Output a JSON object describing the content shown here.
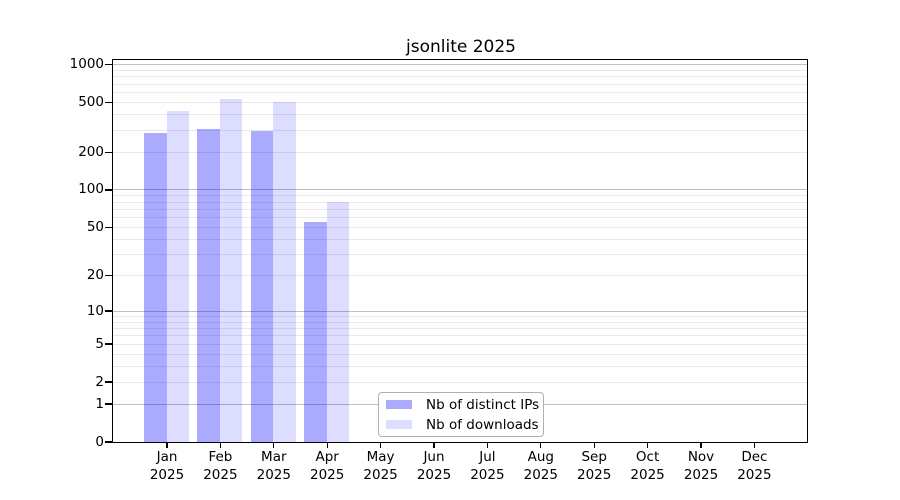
{
  "title": "jsonlite 2025",
  "legend": {
    "position": "lower center",
    "items": [
      {
        "label": "Nb of distinct IPs",
        "color": "#aaaaff"
      },
      {
        "label": "Nb of downloads",
        "color": "#ddddff"
      }
    ]
  },
  "colors": {
    "bar_distinct_ips": "rgba(0,0,255,0.335)",
    "bar_downloads": "rgba(0,0,255,0.135)",
    "major_gridline": "#bfbfbf",
    "minor_gridline": "#e9e9e9",
    "axis": "#000000"
  },
  "chart_data": {
    "type": "bar",
    "title": "jsonlite 2025",
    "categories": [
      "Jan",
      "Feb",
      "Mar",
      "Apr",
      "May",
      "Jun",
      "Jul",
      "Aug",
      "Sep",
      "Oct",
      "Nov",
      "Dec"
    ],
    "year": "2025",
    "series": [
      {
        "name": "Nb of distinct IPs",
        "color": "rgba(0,0,255,0.335)",
        "values": [
          285,
          310,
          295,
          55,
          0,
          0,
          0,
          0,
          0,
          0,
          0,
          0
        ]
      },
      {
        "name": "Nb of downloads",
        "color": "rgba(0,0,255,0.135)",
        "values": [
          430,
          535,
          505,
          80,
          0,
          0,
          0,
          0,
          0,
          0,
          0,
          0
        ]
      }
    ],
    "xlabel": "",
    "ylabel": "",
    "y_axis": {
      "scale": "log1p",
      "ylim": [
        0,
        1090
      ],
      "ticks": [
        1000,
        500,
        200,
        100,
        50,
        20,
        10,
        5,
        2,
        1,
        0
      ],
      "major_gridlines": [
        1,
        10,
        100,
        1000
      ],
      "minor_gridlines": [
        2,
        3,
        4,
        5,
        6,
        7,
        8,
        9,
        20,
        30,
        40,
        50,
        60,
        70,
        80,
        90,
        200,
        300,
        400,
        500,
        600,
        700,
        800,
        900
      ]
    },
    "grid": true,
    "legend_position": "lower center"
  }
}
